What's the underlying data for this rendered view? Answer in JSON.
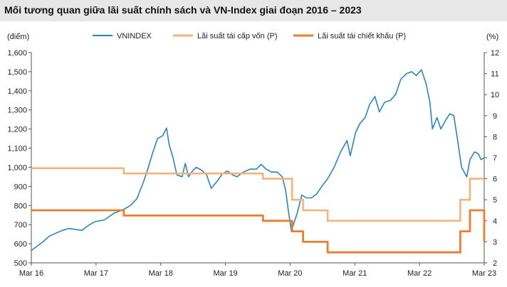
{
  "title": "Mối tương quan giữa lãi suất chính sách và VN-Index giai đoạn 2016 – 2023",
  "colors": {
    "vnindex": "#2a86b8",
    "refinancing": "#f5b27a",
    "discount": "#ec7d2e",
    "title_bg": "#e7e7e7",
    "axis": "#555555"
  },
  "chart_data": {
    "type": "line",
    "title": "Mối tương quan giữa lãi suất chính sách và VN-Index giai đoạn 2016 – 2023",
    "y_left_unit": "(điểm)",
    "y_right_unit": "(%)",
    "y_left_lim": [
      500,
      1600
    ],
    "y_right_lim": [
      2,
      12
    ],
    "y_left_ticks": [
      "500",
      "600",
      "700",
      "800",
      "900",
      "1,000",
      "1,100",
      "1,200",
      "1,300",
      "1,400",
      "1,500",
      "1,600"
    ],
    "y_right_ticks": [
      "2",
      "3",
      "4",
      "5",
      "6",
      "7",
      "8",
      "9",
      "10",
      "11",
      "12"
    ],
    "x_lim": [
      2016.17,
      2023.17
    ],
    "x_ticks": [
      {
        "value": 2016.17,
        "label": "Mar 16"
      },
      {
        "value": 2017.17,
        "label": "Mar 17"
      },
      {
        "value": 2018.17,
        "label": "Mar 18"
      },
      {
        "value": 2019.17,
        "label": "Mar 19"
      },
      {
        "value": 2020.17,
        "label": "Mar 20"
      },
      {
        "value": 2021.17,
        "label": "Mar 21"
      },
      {
        "value": 2022.17,
        "label": "Mar 22"
      },
      {
        "value": 2023.17,
        "label": "Mar 23"
      }
    ],
    "grid": false,
    "legend_position": "top",
    "series": [
      {
        "name": "VNINDEX",
        "axis": "left",
        "style": "line",
        "points": [
          [
            2016.17,
            565
          ],
          [
            2016.25,
            585
          ],
          [
            2016.35,
            610
          ],
          [
            2016.45,
            640
          ],
          [
            2016.55,
            655
          ],
          [
            2016.65,
            670
          ],
          [
            2016.75,
            680
          ],
          [
            2016.85,
            675
          ],
          [
            2016.95,
            670
          ],
          [
            2017.05,
            695
          ],
          [
            2017.15,
            715
          ],
          [
            2017.3,
            725
          ],
          [
            2017.45,
            760
          ],
          [
            2017.6,
            780
          ],
          [
            2017.7,
            800
          ],
          [
            2017.8,
            835
          ],
          [
            2017.9,
            920
          ],
          [
            2017.97,
            990
          ],
          [
            2018.05,
            1080
          ],
          [
            2018.12,
            1150
          ],
          [
            2018.2,
            1165
          ],
          [
            2018.26,
            1205
          ],
          [
            2018.3,
            1120
          ],
          [
            2018.36,
            1050
          ],
          [
            2018.42,
            960
          ],
          [
            2018.5,
            950
          ],
          [
            2018.55,
            1020
          ],
          [
            2018.6,
            950
          ],
          [
            2018.66,
            980
          ],
          [
            2018.72,
            1000
          ],
          [
            2018.8,
            985
          ],
          [
            2018.88,
            960
          ],
          [
            2018.95,
            890
          ],
          [
            2019.05,
            930
          ],
          [
            2019.12,
            965
          ],
          [
            2019.2,
            980
          ],
          [
            2019.28,
            960
          ],
          [
            2019.35,
            950
          ],
          [
            2019.45,
            975
          ],
          [
            2019.55,
            990
          ],
          [
            2019.65,
            990
          ],
          [
            2019.72,
            1015
          ],
          [
            2019.8,
            990
          ],
          [
            2019.88,
            975
          ],
          [
            2019.97,
            975
          ],
          [
            2020.05,
            950
          ],
          [
            2020.1,
            880
          ],
          [
            2020.14,
            780
          ],
          [
            2020.19,
            665
          ],
          [
            2020.23,
            710
          ],
          [
            2020.28,
            760
          ],
          [
            2020.35,
            855
          ],
          [
            2020.42,
            840
          ],
          [
            2020.5,
            840
          ],
          [
            2020.58,
            860
          ],
          [
            2020.66,
            900
          ],
          [
            2020.75,
            940
          ],
          [
            2020.85,
            1000
          ],
          [
            2020.95,
            1080
          ],
          [
            2021.05,
            1140
          ],
          [
            2021.1,
            1060
          ],
          [
            2021.18,
            1180
          ],
          [
            2021.25,
            1230
          ],
          [
            2021.33,
            1260
          ],
          [
            2021.4,
            1330
          ],
          [
            2021.48,
            1370
          ],
          [
            2021.55,
            1290
          ],
          [
            2021.63,
            1340
          ],
          [
            2021.72,
            1350
          ],
          [
            2021.8,
            1380
          ],
          [
            2021.88,
            1460
          ],
          [
            2021.97,
            1490
          ],
          [
            2022.05,
            1500
          ],
          [
            2022.12,
            1480
          ],
          [
            2022.2,
            1510
          ],
          [
            2022.27,
            1440
          ],
          [
            2022.33,
            1340
          ],
          [
            2022.37,
            1200
          ],
          [
            2022.44,
            1260
          ],
          [
            2022.5,
            1200
          ],
          [
            2022.58,
            1250
          ],
          [
            2022.64,
            1280
          ],
          [
            2022.7,
            1270
          ],
          [
            2022.76,
            1140
          ],
          [
            2022.82,
            1000
          ],
          [
            2022.9,
            950
          ],
          [
            2022.95,
            1040
          ],
          [
            2023.02,
            1080
          ],
          [
            2023.08,
            1070
          ],
          [
            2023.12,
            1040
          ],
          [
            2023.17,
            1050
          ]
        ]
      },
      {
        "name": "Lãi suất tái cấp vốn (P)",
        "axis": "right",
        "style": "step",
        "points": [
          [
            2016.17,
            6.5
          ],
          [
            2017.6,
            6.25
          ],
          [
            2019.75,
            6.0
          ],
          [
            2020.2,
            5.0
          ],
          [
            2020.37,
            4.5
          ],
          [
            2020.75,
            4.0
          ],
          [
            2022.8,
            5.0
          ],
          [
            2022.95,
            6.0
          ],
          [
            2023.17,
            6.0
          ]
        ]
      },
      {
        "name": "Lãi suất tái chiết khấu (P)",
        "axis": "right",
        "style": "step",
        "points": [
          [
            2016.17,
            4.5
          ],
          [
            2017.6,
            4.25
          ],
          [
            2019.75,
            4.0
          ],
          [
            2020.2,
            3.5
          ],
          [
            2020.37,
            3.0
          ],
          [
            2020.75,
            2.5
          ],
          [
            2022.8,
            3.5
          ],
          [
            2022.95,
            4.5
          ],
          [
            2023.17,
            3.0
          ]
        ]
      }
    ]
  }
}
